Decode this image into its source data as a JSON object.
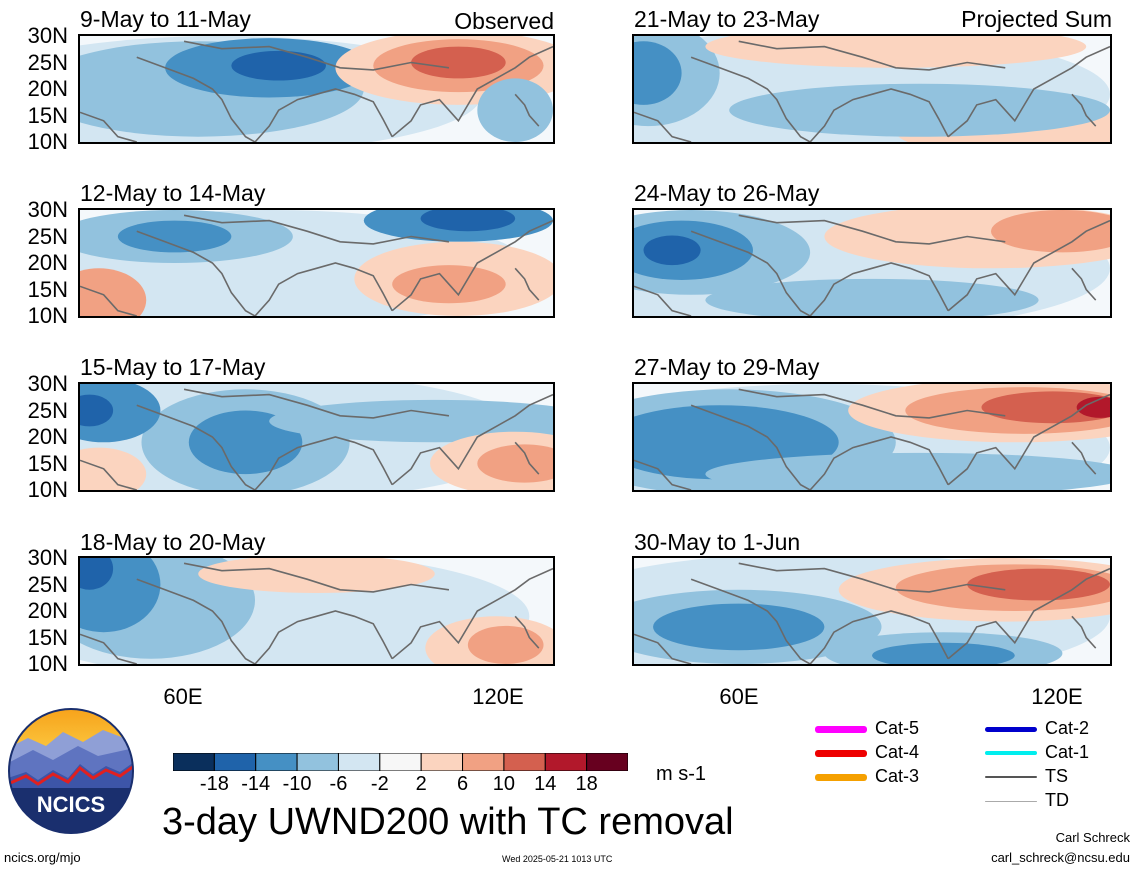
{
  "header": {
    "observed_tag": "Observed",
    "projected_tag": "Projected Sum"
  },
  "panels": [
    {
      "title": "9-May to 11-May",
      "column": "observed",
      "pattern": "obs1"
    },
    {
      "title": "12-May to 14-May",
      "column": "observed",
      "pattern": "obs2"
    },
    {
      "title": "15-May to 17-May",
      "column": "observed",
      "pattern": "obs3"
    },
    {
      "title": "18-May to 20-May",
      "column": "observed",
      "pattern": "obs4"
    },
    {
      "title": "21-May to 23-May",
      "column": "projected",
      "pattern": "proj1"
    },
    {
      "title": "24-May to 26-May",
      "column": "projected",
      "pattern": "proj2"
    },
    {
      "title": "27-May to 29-May",
      "column": "projected",
      "pattern": "proj3"
    },
    {
      "title": "30-May to 1-Jun",
      "column": "projected",
      "pattern": "proj4"
    }
  ],
  "axes": {
    "y_ticks": [
      "30N",
      "25N",
      "20N",
      "15N",
      "10N"
    ],
    "x_ticks": [
      "60E",
      "120E"
    ]
  },
  "colorbar": {
    "labels": [
      "-18",
      "-14",
      "-10",
      "-6",
      "-2",
      "2",
      "6",
      "10",
      "14",
      "18"
    ],
    "colors": [
      "#0a2f5c",
      "#1f63aa",
      "#4590c4",
      "#92c2de",
      "#d3e6f2",
      "#f7f7f7",
      "#fbd4bf",
      "#f1a183",
      "#d4604f",
      "#b2182b",
      "#67001f"
    ],
    "units": "m s-1"
  },
  "legend": [
    {
      "label": "Cat-5",
      "color": "#ff00ff",
      "width": 7
    },
    {
      "label": "Cat-4",
      "color": "#ee0000",
      "width": 7
    },
    {
      "label": "Cat-3",
      "color": "#f5a000",
      "width": 7
    },
    {
      "label": "Cat-2",
      "color": "#0000cc",
      "width": 5
    },
    {
      "label": "Cat-1",
      "color": "#00eeee",
      "width": 4
    },
    {
      "label": "TS",
      "color": "#555555",
      "width": 2
    },
    {
      "label": "TD",
      "color": "#aaaaaa",
      "width": 1
    }
  ],
  "title": "3-day UWND200 with TC removal",
  "logo": {
    "text": "NCICS"
  },
  "footer": {
    "url": "ncics.org/mjo",
    "timestamp": "Wed 2025-05-21 1013 UTC",
    "author": "Carl Schreck",
    "email": "carl_schreck@ncsu.edu"
  }
}
